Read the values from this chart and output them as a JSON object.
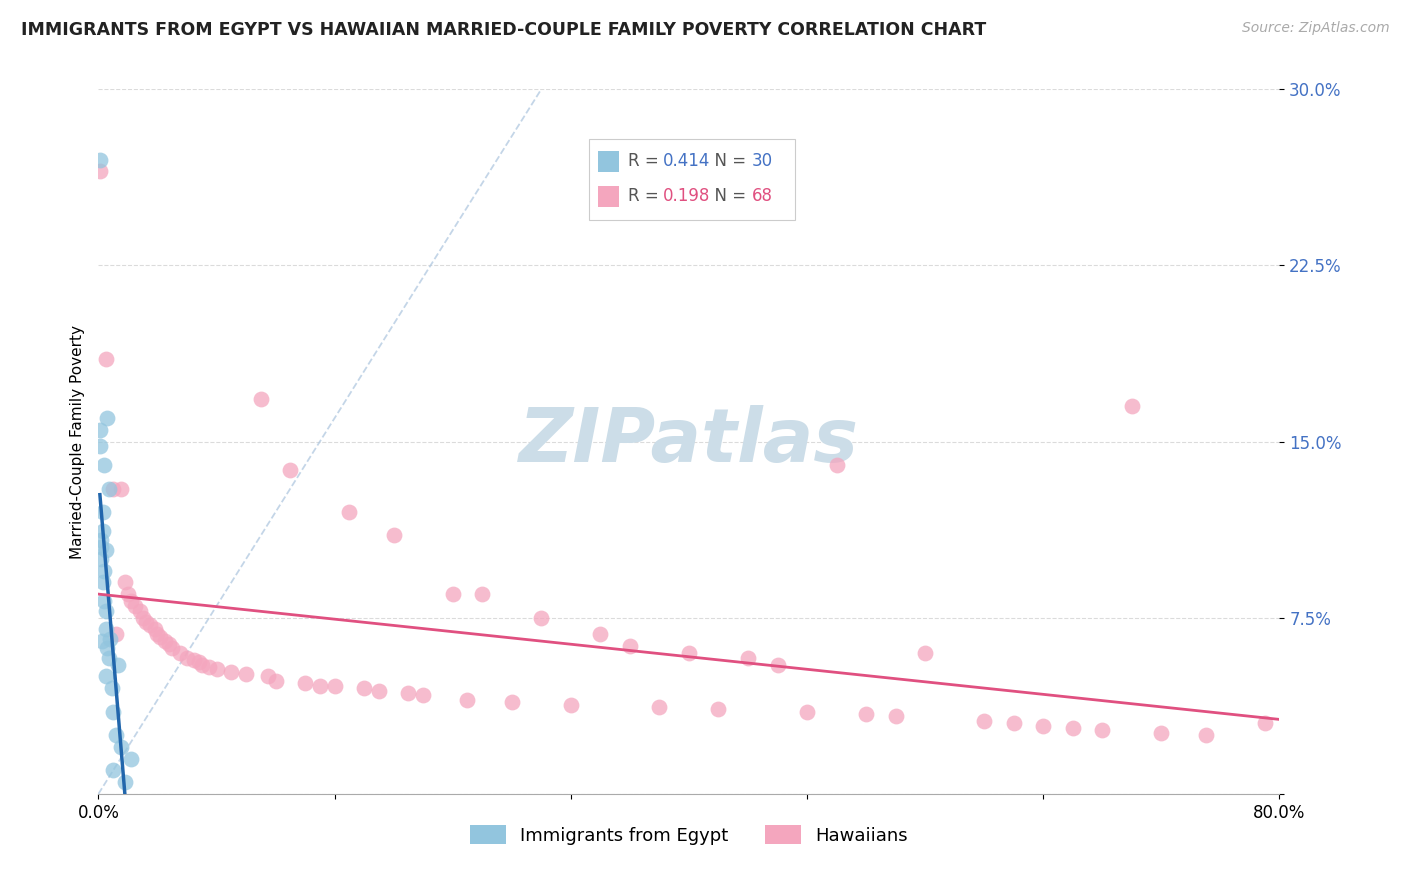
{
  "title": "IMMIGRANTS FROM EGYPT VS HAWAIIAN MARRIED-COUPLE FAMILY POVERTY CORRELATION CHART",
  "source": "Source: ZipAtlas.com",
  "ylabel": "Married-Couple Family Poverty",
  "blue_color": "#92c5de",
  "pink_color": "#f4a6be",
  "blue_line_color": "#2166ac",
  "pink_line_color": "#e05080",
  "diag_color": "#b0c8e0",
  "xlim": [
    0.0,
    0.8
  ],
  "ylim": [
    0.0,
    0.3
  ],
  "yticks": [
    0.0,
    0.075,
    0.15,
    0.225,
    0.3
  ],
  "ytick_labels": [
    "",
    "7.5%",
    "15.0%",
    "22.5%",
    "30.0%"
  ],
  "xtick_positions": [
    0.0,
    0.16,
    0.32,
    0.48,
    0.64,
    0.8
  ],
  "xtick_labels": [
    "0.0%",
    "",
    "",
    "",
    "",
    "80.0%"
  ],
  "r1": "0.414",
  "n1": "30",
  "r2": "0.198",
  "n2": "68",
  "legend1_label": "Immigrants from Egypt",
  "legend2_label": "Hawaiians",
  "blue_dots_x": [
    0.001,
    0.001,
    0.001,
    0.0015,
    0.002,
    0.002,
    0.0025,
    0.003,
    0.003,
    0.003,
    0.004,
    0.004,
    0.004,
    0.005,
    0.005,
    0.005,
    0.005,
    0.006,
    0.006,
    0.007,
    0.007,
    0.008,
    0.009,
    0.01,
    0.01,
    0.012,
    0.013,
    0.015,
    0.018,
    0.022
  ],
  "blue_dots_y": [
    0.148,
    0.155,
    0.27,
    0.105,
    0.1,
    0.108,
    0.065,
    0.112,
    0.12,
    0.09,
    0.082,
    0.095,
    0.14,
    0.07,
    0.078,
    0.104,
    0.05,
    0.062,
    0.16,
    0.058,
    0.13,
    0.066,
    0.045,
    0.035,
    0.01,
    0.025,
    0.055,
    0.02,
    0.005,
    0.015
  ],
  "pink_dots_x": [
    0.001,
    0.005,
    0.01,
    0.012,
    0.015,
    0.018,
    0.02,
    0.022,
    0.025,
    0.028,
    0.03,
    0.032,
    0.035,
    0.038,
    0.04,
    0.042,
    0.045,
    0.048,
    0.05,
    0.055,
    0.06,
    0.065,
    0.068,
    0.07,
    0.075,
    0.08,
    0.09,
    0.1,
    0.11,
    0.115,
    0.12,
    0.13,
    0.14,
    0.15,
    0.16,
    0.17,
    0.18,
    0.19,
    0.2,
    0.21,
    0.22,
    0.24,
    0.25,
    0.26,
    0.28,
    0.3,
    0.32,
    0.34,
    0.36,
    0.38,
    0.4,
    0.42,
    0.44,
    0.46,
    0.48,
    0.5,
    0.52,
    0.54,
    0.56,
    0.6,
    0.62,
    0.64,
    0.66,
    0.68,
    0.7,
    0.72,
    0.75,
    0.79
  ],
  "pink_dots_y": [
    0.265,
    0.185,
    0.13,
    0.068,
    0.13,
    0.09,
    0.085,
    0.082,
    0.08,
    0.078,
    0.075,
    0.073,
    0.072,
    0.07,
    0.068,
    0.067,
    0.065,
    0.064,
    0.062,
    0.06,
    0.058,
    0.057,
    0.056,
    0.055,
    0.054,
    0.053,
    0.052,
    0.051,
    0.168,
    0.05,
    0.048,
    0.138,
    0.047,
    0.046,
    0.046,
    0.12,
    0.045,
    0.044,
    0.11,
    0.043,
    0.042,
    0.085,
    0.04,
    0.085,
    0.039,
    0.075,
    0.038,
    0.068,
    0.063,
    0.037,
    0.06,
    0.036,
    0.058,
    0.055,
    0.035,
    0.14,
    0.034,
    0.033,
    0.06,
    0.031,
    0.03,
    0.029,
    0.028,
    0.027,
    0.165,
    0.026,
    0.025,
    0.03
  ]
}
